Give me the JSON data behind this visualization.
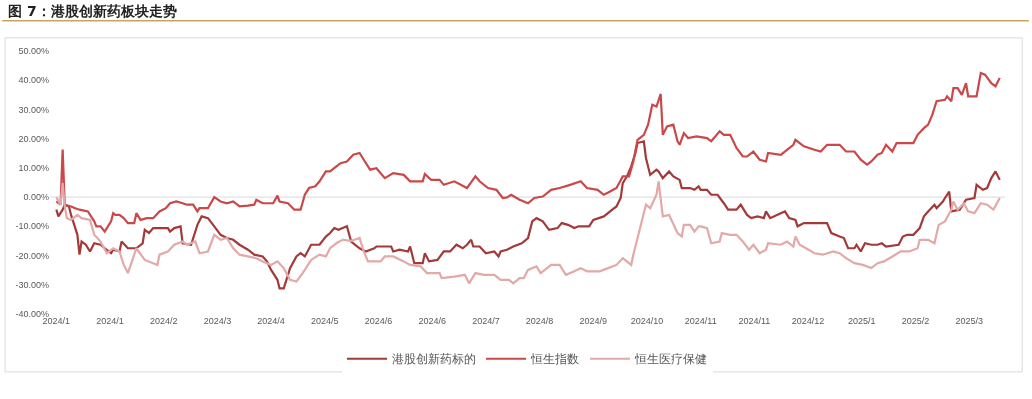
{
  "chart_data": {
    "type": "line",
    "title": "图 7：港股创新药板块走势",
    "xlim": [
      "2023-12-30",
      "2025-03-27T12:00"
    ],
    "xticks": [
      {
        "value": "2024-01-02",
        "label": "2024/1"
      },
      {
        "value": "2024-01-27T12:00",
        "label": "2024/1"
      },
      {
        "value": "2024-02-22",
        "label": "2024/2"
      },
      {
        "value": "2024-03-18T12:00",
        "label": "2024/3"
      },
      {
        "value": "2024-04-13",
        "label": "2024/4"
      },
      {
        "value": "2024-05-08T12:00",
        "label": "2024/5"
      },
      {
        "value": "2024-06-03",
        "label": "2024/6"
      },
      {
        "value": "2024-06-28T12:00",
        "label": "2024/6"
      },
      {
        "value": "2024-07-24",
        "label": "2024/7"
      },
      {
        "value": "2024-08-18T12:00",
        "label": "2024/8"
      },
      {
        "value": "2024-09-13",
        "label": "2024/9"
      },
      {
        "value": "2024-10-08T12:00",
        "label": "2024/10"
      },
      {
        "value": "2024-11-03",
        "label": "2024/11"
      },
      {
        "value": "2024-11-28T12:00",
        "label": "2024/11"
      },
      {
        "value": "2024-12-24",
        "label": "2024/12"
      },
      {
        "value": "2025-01-18T12:00",
        "label": "2025/1"
      },
      {
        "value": "2025-02-13",
        "label": "2025/2"
      },
      {
        "value": "2025-03-10T12:00",
        "label": "2025/3"
      }
    ],
    "ylim": [
      -40,
      50
    ],
    "yticks": [
      {
        "value": -40,
        "label": "-40.00%"
      },
      {
        "value": -30,
        "label": "-30.00%"
      },
      {
        "value": -20,
        "label": "-20.00%"
      },
      {
        "value": -10,
        "label": "-10.00%"
      },
      {
        "value": 0,
        "label": "0.00%"
      },
      {
        "value": 10,
        "label": "10.00%"
      },
      {
        "value": 20,
        "label": "20.00%"
      },
      {
        "value": 30,
        "label": "30.00%"
      },
      {
        "value": 40,
        "label": "40.00%"
      },
      {
        "value": 50,
        "label": "50.00%"
      }
    ],
    "grid": false,
    "legend": "bottom",
    "marker": "none",
    "line_style": "solid",
    "ref_lines": [
      {
        "axis": "y",
        "value": 0,
        "label": null,
        "color": "#d9d9d9"
      }
    ],
    "series": [
      {
        "name": "港股创新药标的",
        "color": "#a33a3a",
        "x": [
          "2024-01-02",
          "2024-01-03",
          "2024-01-05",
          "2024-01-06",
          "2024-01-08",
          "2024-01-09",
          "2024-01-12",
          "2024-01-13",
          "2024-01-14",
          "2024-01-16",
          "2024-01-18",
          "2024-01-20",
          "2024-01-23",
          "2024-01-25",
          "2024-01-28",
          "2024-01-29",
          "2024-02-01",
          "2024-02-02",
          "2024-02-05",
          "2024-02-09",
          "2024-02-12",
          "2024-02-13",
          "2024-02-15",
          "2024-02-17",
          "2024-02-20",
          "2024-02-24",
          "2024-02-25",
          "2024-02-27",
          "2024-03-01",
          "2024-03-02",
          "2024-03-06",
          "2024-03-09",
          "2024-03-11",
          "2024-03-14",
          "2024-03-17",
          "2024-03-20",
          "2024-03-23",
          "2024-03-26",
          "2024-03-29",
          "2024-04-02",
          "2024-04-05",
          "2024-04-09",
          "2024-04-11",
          "2024-04-13",
          "2024-04-16",
          "2024-04-17",
          "2024-04-19",
          "2024-04-22",
          "2024-04-25",
          "2024-04-27",
          "2024-04-29",
          "2024-05-02",
          "2024-05-06",
          "2024-05-09",
          "2024-05-11",
          "2024-05-13",
          "2024-05-15",
          "2024-05-17",
          "2024-05-19",
          "2024-05-21",
          "2024-05-25",
          "2024-05-28",
          "2024-06-01",
          "2024-06-02",
          "2024-06-09",
          "2024-06-10",
          "2024-06-13",
          "2024-06-17",
          "2024-06-18",
          "2024-06-20",
          "2024-06-24",
          "2024-06-25",
          "2024-06-27",
          "2024-07-01",
          "2024-07-04",
          "2024-07-07",
          "2024-07-10",
          "2024-07-13",
          "2024-07-15",
          "2024-07-17",
          "2024-07-18",
          "2024-07-21",
          "2024-07-24",
          "2024-07-28",
          "2024-07-30",
          "2024-07-31",
          "2024-08-03",
          "2024-08-06",
          "2024-08-10",
          "2024-08-13",
          "2024-08-15",
          "2024-08-17",
          "2024-08-20",
          "2024-08-23",
          "2024-08-27",
          "2024-08-29",
          "2024-09-01",
          "2024-09-04",
          "2024-09-06",
          "2024-09-11",
          "2024-09-13",
          "2024-09-18",
          "2024-09-22",
          "2024-09-24",
          "2024-09-26",
          "2024-09-27",
          "2024-09-29",
          "2024-10-01",
          "2024-10-03",
          "2024-10-04",
          "2024-10-07",
          "2024-10-08",
          "2024-10-10",
          "2024-10-13",
          "2024-10-14",
          "2024-10-16",
          "2024-10-19",
          "2024-10-21",
          "2024-10-24",
          "2024-10-25",
          "2024-10-29",
          "2024-10-31",
          "2024-11-02",
          "2024-11-03",
          "2024-11-06",
          "2024-11-08",
          "2024-11-11",
          "2024-11-14",
          "2024-11-16",
          "2024-11-20",
          "2024-11-22",
          "2024-11-25",
          "2024-11-27",
          "2024-11-30",
          "2024-12-03",
          "2024-12-04",
          "2024-12-06",
          "2024-12-11",
          "2024-12-13",
          "2024-12-15",
          "2024-12-18",
          "2024-12-19",
          "2024-12-22",
          "2024-12-27",
          "2025-01-02",
          "2025-01-04",
          "2025-01-08",
          "2025-01-10",
          "2025-01-12",
          "2025-01-15",
          "2025-01-16",
          "2025-01-18",
          "2025-01-20",
          "2025-01-23",
          "2025-01-26",
          "2025-01-28",
          "2025-01-30",
          "2025-02-05",
          "2025-02-07",
          "2025-02-09",
          "2025-02-12",
          "2025-02-15",
          "2025-02-17",
          "2025-02-19",
          "2025-02-22",
          "2025-02-23",
          "2025-02-26",
          "2025-02-27",
          "2025-03-01",
          "2025-03-02",
          "2025-03-06",
          "2025-03-09",
          "2025-03-13",
          "2025-03-14",
          "2025-03-17",
          "2025-03-19",
          "2025-03-21",
          "2025-03-23",
          "2025-03-25"
        ],
        "values": [
          -4.3,
          -6.6,
          -4.3,
          -2.6,
          -3.2,
          -6.1,
          -12.9,
          -19.7,
          -15.2,
          -16.3,
          -18.6,
          -15.8,
          -16.3,
          -17.5,
          -19.2,
          -18.0,
          -18.6,
          -15.2,
          -17.5,
          -17.5,
          -15.8,
          -11.2,
          -12.3,
          -10.6,
          -10.6,
          -10.6,
          -11.8,
          -10.6,
          -10.0,
          -15.8,
          -16.3,
          -9.5,
          -6.6,
          -7.2,
          -10.0,
          -12.9,
          -14.0,
          -14.6,
          -16.3,
          -18.0,
          -19.7,
          -20.3,
          -22.0,
          -24.9,
          -28.3,
          -31.2,
          -31.2,
          -24.3,
          -20.3,
          -19.2,
          -20.3,
          -16.3,
          -16.3,
          -13.5,
          -12.3,
          -10.6,
          -11.2,
          -10.6,
          -10.0,
          -15.2,
          -17.5,
          -18.6,
          -17.5,
          -16.9,
          -16.9,
          -18.6,
          -18.0,
          -18.6,
          -16.9,
          -22.6,
          -22.6,
          -19.2,
          -22.0,
          -21.5,
          -18.6,
          -18.6,
          -16.3,
          -17.5,
          -16.3,
          -14.6,
          -16.9,
          -16.9,
          -19.2,
          -18.6,
          -20.3,
          -18.6,
          -18.0,
          -16.9,
          -15.8,
          -14.0,
          -8.3,
          -7.2,
          -8.3,
          -11.2,
          -10.6,
          -8.9,
          -9.5,
          -10.6,
          -10.0,
          -10.0,
          -7.8,
          -6.6,
          -4.3,
          -3.2,
          -0.3,
          4.8,
          7.1,
          10.5,
          15.1,
          18.5,
          19.1,
          13.4,
          7.6,
          9.4,
          8.8,
          6.5,
          8.8,
          7.1,
          5.9,
          3.1,
          3.1,
          2.5,
          3.7,
          2.5,
          2.5,
          0.8,
          0.8,
          -2.1,
          -4.3,
          -4.3,
          -2.6,
          -6.1,
          -7.2,
          -6.6,
          -7.2,
          -4.9,
          -7.2,
          -5.5,
          -4.9,
          -7.2,
          -7.8,
          -10.0,
          -8.9,
          -8.9,
          -8.9,
          -12.3,
          -13.5,
          -14.0,
          -17.5,
          -17.5,
          -16.3,
          -18.6,
          -15.8,
          -16.3,
          -16.3,
          -15.8,
          -16.9,
          -16.3,
          -13.5,
          -12.9,
          -12.9,
          -10.6,
          -6.6,
          -4.9,
          -2.6,
          -3.8,
          -1.5,
          -0.3,
          1.9,
          -4.9,
          -4.3,
          -0.9,
          -0.3,
          4.2,
          2.5,
          3.1,
          6.5,
          8.8,
          5.9
        ]
      },
      {
        "name": "恒生指数",
        "color": "#c9484a",
        "x": [
          "2024-01-02",
          "2024-01-04",
          "2024-01-05",
          "2024-01-06",
          "2024-01-09",
          "2024-01-11",
          "2024-01-13",
          "2024-01-17",
          "2024-01-20",
          "2024-01-21",
          "2024-01-23",
          "2024-01-25",
          "2024-01-28",
          "2024-01-29",
          "2024-01-30",
          "2024-02-01",
          "2024-02-03",
          "2024-02-05",
          "2024-02-08",
          "2024-02-09",
          "2024-02-11",
          "2024-02-14",
          "2024-02-17",
          "2024-02-20",
          "2024-02-23",
          "2024-02-25",
          "2024-02-28",
          "2024-03-02",
          "2024-03-04",
          "2024-03-07",
          "2024-03-09",
          "2024-03-10",
          "2024-03-14",
          "2024-03-17",
          "2024-03-20",
          "2024-03-23",
          "2024-03-26",
          "2024-03-29",
          "2024-04-02",
          "2024-04-05",
          "2024-04-06",
          "2024-04-09",
          "2024-04-14",
          "2024-04-16",
          "2024-04-17",
          "2024-04-21",
          "2024-04-24",
          "2024-04-27",
          "2024-04-29",
          "2024-05-01",
          "2024-05-04",
          "2024-05-06",
          "2024-05-09",
          "2024-05-11",
          "2024-05-14",
          "2024-05-16",
          "2024-05-19",
          "2024-05-22",
          "2024-05-25",
          "2024-05-27",
          "2024-05-30",
          "2024-06-02",
          "2024-06-06",
          "2024-06-10",
          "2024-06-15",
          "2024-06-18",
          "2024-06-24",
          "2024-06-25",
          "2024-06-28",
          "2024-07-02",
          "2024-07-04",
          "2024-07-09",
          "2024-07-15",
          "2024-07-19",
          "2024-07-21",
          "2024-07-25",
          "2024-07-29",
          "2024-08-01",
          "2024-08-03",
          "2024-08-05",
          "2024-08-09",
          "2024-08-13",
          "2024-08-16",
          "2024-08-20",
          "2024-08-24",
          "2024-08-28",
          "2024-09-02",
          "2024-09-07",
          "2024-09-10",
          "2024-09-15",
          "2024-09-18",
          "2024-09-21",
          "2024-09-24",
          "2024-09-27",
          "2024-09-30",
          "2024-10-02",
          "2024-10-04",
          "2024-10-07",
          "2024-10-09",
          "2024-10-11",
          "2024-10-13",
          "2024-10-15",
          "2024-10-16",
          "2024-10-18",
          "2024-10-21",
          "2024-10-23",
          "2024-10-24",
          "2024-10-26",
          "2024-10-28",
          "2024-11-01",
          "2024-11-06",
          "2024-11-08",
          "2024-11-12",
          "2024-11-14",
          "2024-11-17",
          "2024-11-20",
          "2024-11-23",
          "2024-11-25",
          "2024-11-28",
          "2024-12-01",
          "2024-12-04",
          "2024-12-05",
          "2024-12-11",
          "2024-12-14",
          "2024-12-17",
          "2024-12-18",
          "2024-12-20",
          "2024-12-22",
          "2024-12-27",
          "2024-12-30",
          "2025-01-02",
          "2025-01-08",
          "2025-01-11",
          "2025-01-15",
          "2025-01-18",
          "2025-01-21",
          "2025-01-23",
          "2025-01-26",
          "2025-01-28",
          "2025-01-30",
          "2025-02-02",
          "2025-02-04",
          "2025-02-12",
          "2025-02-14",
          "2025-02-17",
          "2025-02-19",
          "2025-02-21",
          "2025-02-23",
          "2025-02-27",
          "2025-02-28",
          "2025-03-02",
          "2025-03-03",
          "2025-03-05",
          "2025-03-07",
          "2025-03-09",
          "2025-03-10",
          "2025-03-14",
          "2025-03-16",
          "2025-03-18",
          "2025-03-21",
          "2025-03-23",
          "2025-03-25"
        ],
        "values": [
          -1.5,
          -2.6,
          16.3,
          -2.6,
          -3.2,
          -3.8,
          -4.3,
          -4.9,
          -8.3,
          -10.0,
          -10.0,
          -11.8,
          -8.3,
          -5.5,
          -6.1,
          -6.1,
          -7.2,
          -8.9,
          -8.9,
          -5.5,
          -7.8,
          -7.2,
          -7.2,
          -4.9,
          -3.8,
          -2.1,
          -1.5,
          -2.1,
          -2.6,
          -2.6,
          -4.9,
          -3.8,
          -3.8,
          0.0,
          -1.5,
          -2.1,
          -1.5,
          -3.2,
          -2.9,
          -2.6,
          -0.9,
          -2.1,
          -2.1,
          0.5,
          -1.5,
          -2.1,
          -4.3,
          -4.3,
          0.8,
          3.1,
          3.7,
          5.4,
          8.8,
          8.8,
          10.5,
          11.6,
          12.2,
          14.5,
          15.1,
          12.8,
          9.4,
          9.9,
          6.5,
          8.2,
          7.6,
          5.4,
          5.4,
          7.9,
          5.9,
          5.9,
          4.2,
          5.4,
          3.1,
          7.1,
          5.4,
          3.1,
          2.5,
          -0.3,
          -0.1,
          0.8,
          -0.9,
          -2.1,
          -0.3,
          0.2,
          2.5,
          3.1,
          4.2,
          5.4,
          3.1,
          2.5,
          0.8,
          1.9,
          3.1,
          7.1,
          7.1,
          12.2,
          19.6,
          21.3,
          24.8,
          31.6,
          31.0,
          35.3,
          21.3,
          24.2,
          24.8,
          19.1,
          17.9,
          21.9,
          20.2,
          20.8,
          20.2,
          19.1,
          22.5,
          21.3,
          21.3,
          16.8,
          13.9,
          13.9,
          15.6,
          12.8,
          12.2,
          15.1,
          14.5,
          16.2,
          17.9,
          19.6,
          18.5,
          17.4,
          16.2,
          15.6,
          17.9,
          17.9,
          15.6,
          15.6,
          12.8,
          11.1,
          12.2,
          14.5,
          15.1,
          17.9,
          15.6,
          18.5,
          18.5,
          21.3,
          23.6,
          24.8,
          28.2,
          32.8,
          33.3,
          34.5,
          32.8,
          37.3,
          37.3,
          35.0,
          39.0,
          34.5,
          34.5,
          42.5,
          41.9,
          39.0,
          37.9,
          40.8
        ]
      },
      {
        "name": "恒生医疗保健",
        "color": "#e3a8a8",
        "x": [
          "2024-01-02",
          "2024-01-04",
          "2024-01-05",
          "2024-01-06",
          "2024-01-07",
          "2024-01-09",
          "2024-01-12",
          "2024-01-14",
          "2024-01-18",
          "2024-01-20",
          "2024-01-23",
          "2024-01-26",
          "2024-01-29",
          "2024-02-01",
          "2024-02-03",
          "2024-02-05",
          "2024-02-09",
          "2024-02-13",
          "2024-02-19",
          "2024-02-20",
          "2024-02-24",
          "2024-02-27",
          "2024-03-02",
          "2024-03-04",
          "2024-03-08",
          "2024-03-10",
          "2024-03-14",
          "2024-03-17",
          "2024-03-20",
          "2024-03-23",
          "2024-03-26",
          "2024-03-29",
          "2024-04-02",
          "2024-04-06",
          "2024-04-09",
          "2024-04-13",
          "2024-04-16",
          "2024-04-19",
          "2024-04-22",
          "2024-04-25",
          "2024-04-28",
          "2024-05-02",
          "2024-05-06",
          "2024-05-09",
          "2024-05-11",
          "2024-05-14",
          "2024-05-17",
          "2024-05-21",
          "2024-05-25",
          "2024-05-27",
          "2024-05-29",
          "2024-06-04",
          "2024-06-06",
          "2024-06-10",
          "2024-06-15",
          "2024-06-18",
          "2024-06-23",
          "2024-06-26",
          "2024-07-02",
          "2024-07-03",
          "2024-07-09",
          "2024-07-14",
          "2024-07-16",
          "2024-07-19",
          "2024-07-23",
          "2024-07-28",
          "2024-07-31",
          "2024-08-04",
          "2024-08-06",
          "2024-08-09",
          "2024-08-11",
          "2024-08-13",
          "2024-08-17",
          "2024-08-19",
          "2024-08-24",
          "2024-08-28",
          "2024-08-31",
          "2024-09-04",
          "2024-09-07",
          "2024-09-10",
          "2024-09-16",
          "2024-09-20",
          "2024-09-24",
          "2024-09-27",
          "2024-10-01",
          "2024-10-02",
          "2024-10-05",
          "2024-10-08",
          "2024-10-10",
          "2024-10-13",
          "2024-10-14",
          "2024-10-16",
          "2024-10-19",
          "2024-10-23",
          "2024-10-25",
          "2024-10-26",
          "2024-10-29",
          "2024-10-31",
          "2024-11-02",
          "2024-11-03",
          "2024-11-06",
          "2024-11-08",
          "2024-11-12",
          "2024-11-13",
          "2024-11-17",
          "2024-11-20",
          "2024-11-23",
          "2024-11-26",
          "2024-11-28",
          "2024-12-01",
          "2024-12-04",
          "2024-12-05",
          "2024-12-11",
          "2024-12-14",
          "2024-12-17",
          "2024-12-18",
          "2024-12-20",
          "2024-12-23",
          "2024-12-27",
          "2024-12-31",
          "2025-01-05",
          "2025-01-08",
          "2025-01-11",
          "2025-01-15",
          "2025-01-19",
          "2025-01-23",
          "2025-01-26",
          "2025-01-29",
          "2025-02-02",
          "2025-02-06",
          "2025-02-10",
          "2025-02-14",
          "2025-02-15",
          "2025-02-19",
          "2025-02-22",
          "2025-02-24",
          "2025-02-27",
          "2025-03-02",
          "2025-03-03",
          "2025-03-05",
          "2025-03-08",
          "2025-03-10",
          "2025-03-13",
          "2025-03-16",
          "2025-03-19",
          "2025-03-22",
          "2025-03-25"
        ],
        "values": [
          0.0,
          -2.6,
          4.8,
          -3.2,
          -7.2,
          -7.8,
          -6.1,
          -7.2,
          -7.8,
          -12.9,
          -15.2,
          -19.2,
          -17.5,
          -18.6,
          -23.2,
          -26.0,
          -17.5,
          -21.5,
          -23.2,
          -19.7,
          -18.6,
          -16.3,
          -15.2,
          -16.3,
          -15.2,
          -19.2,
          -18.6,
          -12.9,
          -14.6,
          -14.0,
          -17.5,
          -19.7,
          -20.3,
          -20.9,
          -22.0,
          -23.2,
          -22.0,
          -24.3,
          -28.3,
          -28.9,
          -26.0,
          -21.5,
          -19.7,
          -20.3,
          -17.5,
          -15.8,
          -14.6,
          -15.0,
          -14.0,
          -18.6,
          -22.0,
          -22.0,
          -20.3,
          -20.3,
          -22.0,
          -23.2,
          -23.7,
          -26.0,
          -26.0,
          -27.7,
          -27.2,
          -26.6,
          -29.5,
          -26.0,
          -26.6,
          -26.6,
          -28.3,
          -28.3,
          -29.5,
          -27.7,
          -27.7,
          -24.9,
          -23.7,
          -26.0,
          -23.2,
          -23.2,
          -26.6,
          -25.4,
          -24.3,
          -25.4,
          -25.4,
          -24.3,
          -23.2,
          -20.9,
          -23.2,
          -19.7,
          -11.2,
          -2.6,
          -3.8,
          0.8,
          5.4,
          -6.6,
          -6.1,
          -12.3,
          -13.5,
          -9.5,
          -9.5,
          -11.8,
          -10.0,
          -10.0,
          -10.6,
          -15.8,
          -15.2,
          -12.3,
          -12.9,
          -12.9,
          -15.2,
          -18.0,
          -16.3,
          -19.2,
          -18.0,
          -15.8,
          -16.3,
          -15.2,
          -16.9,
          -13.5,
          -16.3,
          -17.5,
          -19.2,
          -19.7,
          -18.6,
          -19.2,
          -20.9,
          -22.6,
          -23.2,
          -24.3,
          -22.6,
          -22.0,
          -20.3,
          -18.6,
          -18.6,
          -17.5,
          -14.6,
          -14.6,
          -15.8,
          -9.5,
          -8.3,
          -4.3,
          -1.5,
          -4.3,
          -2.1,
          -4.9,
          -5.5,
          -2.1,
          -2.6,
          -4.3,
          -0.3
        ]
      }
    ]
  }
}
